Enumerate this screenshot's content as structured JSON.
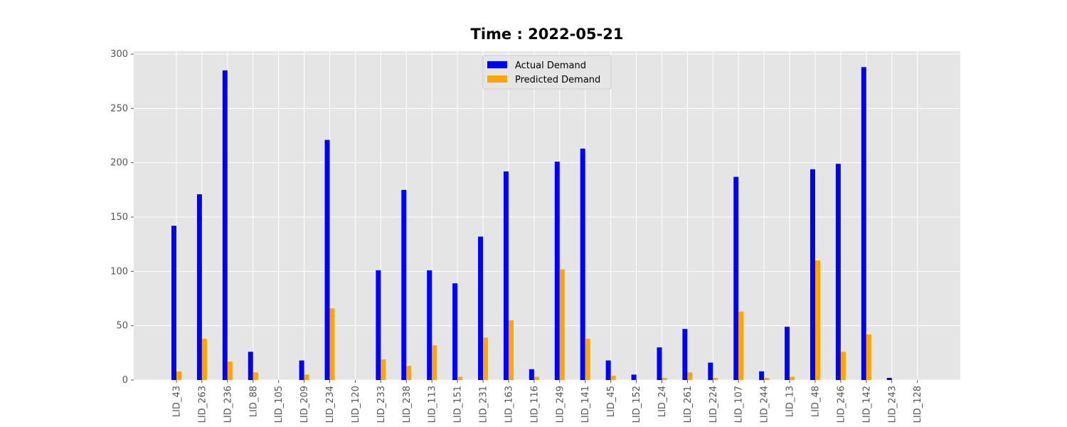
{
  "chart_data": {
    "type": "bar",
    "title": "Time : 2022-05-21",
    "xlabel": "",
    "ylabel": "",
    "ylim": [
      0,
      300
    ],
    "yticks": [
      0,
      50,
      100,
      150,
      200,
      250,
      300
    ],
    "grid": true,
    "legend_position": "top-center",
    "categories": [
      "LID_43",
      "LID_263",
      "LID_236",
      "LID_88",
      "LID_105",
      "LID_209",
      "LID_234",
      "LID_120",
      "LID_233",
      "LID_238",
      "LID_113",
      "LID_151",
      "LID_231",
      "LID_163",
      "LID_116",
      "LID_249",
      "LID_141",
      "LID_45",
      "LID_152",
      "LID_24",
      "LID_261",
      "LID_224",
      "LID_107",
      "LID_244",
      "LID_13",
      "LID_48",
      "LID_246",
      "LID_142",
      "LID_243",
      "LID_128"
    ],
    "series": [
      {
        "name": "Actual Demand",
        "color": "#0000ff",
        "values": [
          142,
          171,
          285,
          26,
          0,
          18,
          221,
          0,
          101,
          175,
          101,
          89,
          132,
          192,
          10,
          201,
          213,
          18,
          5,
          30,
          47,
          16,
          187,
          8,
          49,
          194,
          199,
          288,
          2,
          0
        ]
      },
      {
        "name": "Predicted Demand",
        "color": "#ffa500",
        "values": [
          8,
          38,
          17,
          7,
          0,
          5,
          66,
          0,
          19,
          13,
          32,
          3,
          39,
          55,
          3,
          102,
          38,
          4,
          0,
          2,
          7,
          2,
          63,
          2,
          3,
          110,
          26,
          42,
          0,
          0
        ]
      }
    ]
  },
  "colors": {
    "plot_background": "#e5e5e5",
    "grid": "#ffffff",
    "tick_text": "#555555"
  }
}
